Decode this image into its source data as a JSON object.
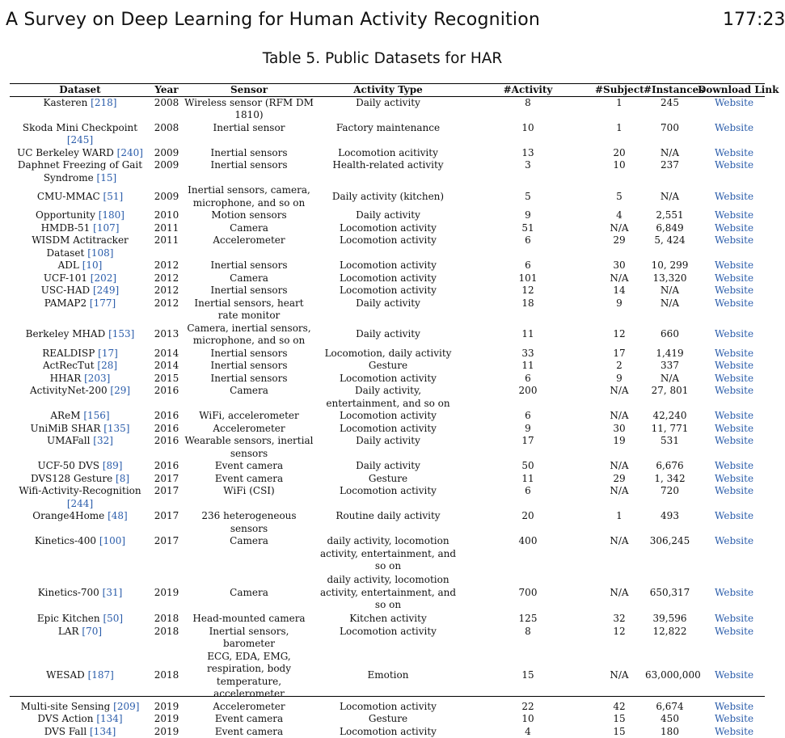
{
  "header": {
    "title": "A Survey on Deep Learning for Human Activity Recognition",
    "page": "177:23"
  },
  "caption": "Table 5.  Public Datasets for HAR",
  "columns": [
    "Dataset",
    "Year",
    "Sensor",
    "Activity Type",
    "#Activity",
    "#Subject",
    "#Instances",
    "Download Link"
  ],
  "rows": [
    {
      "name": "Kasteren",
      "ref": "[218]",
      "year": "2008",
      "sensor": "Wireless sensor (RFM DM 1810)",
      "activity": "Daily activity",
      "n_act": "8",
      "n_subj": "1",
      "n_inst": "245",
      "link": "Website"
    },
    {
      "name": "Skoda Mini Checkpoint",
      "ref": "[245]",
      "year": "2008",
      "sensor": "Inertial sensor",
      "activity": "Factory maintenance",
      "n_act": "10",
      "n_subj": "1",
      "n_inst": "700",
      "link": "Website"
    },
    {
      "name": "UC Berkeley WARD",
      "ref": "[240]",
      "year": "2009",
      "sensor": "Inertial sensors",
      "activity": "Locomotion acitivity",
      "n_act": "13",
      "n_subj": "20",
      "n_inst": "N/A",
      "link": "Website"
    },
    {
      "name": "Daphnet Freezing of Gait Syndrome",
      "ref": "[15]",
      "year": "2009",
      "sensor": "Inertial sensors",
      "activity": "Health-related activity",
      "n_act": "3",
      "n_subj": "10",
      "n_inst": "237",
      "link": "Website"
    },
    {
      "name": "CMU-MMAC",
      "ref": "[51]",
      "year": "2009",
      "sensor": "Inertial sensors, camera, microphone, and so on",
      "activity": "Daily activity (kitchen)",
      "n_act": "5",
      "n_subj": "5",
      "n_inst": "N/A",
      "link": "Website",
      "mid": true
    },
    {
      "name": "Opportunity",
      "ref": "[180]",
      "year": "2010",
      "sensor": "Motion sensors",
      "activity": "Daily activity",
      "n_act": "9",
      "n_subj": "4",
      "n_inst": "2,551",
      "link": "Website"
    },
    {
      "name": "HMDB-51",
      "ref": "[107]",
      "year": "2011",
      "sensor": "Camera",
      "activity": "Locomotion activity",
      "n_act": "51",
      "n_subj": "N/A",
      "n_inst": "6,849",
      "link": "Website"
    },
    {
      "name": "WISDM Actitracker Dataset",
      "ref": "[108]",
      "year": "2011",
      "sensor": "Accelerometer",
      "activity": "Locomotion activity",
      "n_act": "6",
      "n_subj": "29",
      "n_inst": "5, 424",
      "link": "Website"
    },
    {
      "name": "ADL",
      "ref": "[10]",
      "year": "2012",
      "sensor": "Inertial sensors",
      "activity": "Locomotion activity",
      "n_act": "6",
      "n_subj": "30",
      "n_inst": "10, 299",
      "link": "Website"
    },
    {
      "name": "UCF-101",
      "ref": "[202]",
      "year": "2012",
      "sensor": "Camera",
      "activity": "Locomotion activity",
      "n_act": "101",
      "n_subj": "N/A",
      "n_inst": "13,320",
      "link": "Website"
    },
    {
      "name": "USC-HAD",
      "ref": "[249]",
      "year": "2012",
      "sensor": "Inertial sensors",
      "activity": "Locomotion activity",
      "n_act": "12",
      "n_subj": "14",
      "n_inst": "N/A",
      "link": "Website"
    },
    {
      "name": "PAMAP2",
      "ref": "[177]",
      "year": "2012",
      "sensor": "Inertial sensors, heart rate monitor",
      "activity": "Daily activity",
      "n_act": "18",
      "n_subj": "9",
      "n_inst": "N/A",
      "link": "Website"
    },
    {
      "name": "Berkeley MHAD",
      "ref": "[153]",
      "year": "2013",
      "sensor": "Camera, inertial sensors, microphone, and so on",
      "activity": "Daily activity",
      "n_act": "11",
      "n_subj": "12",
      "n_inst": "660",
      "link": "Website",
      "mid": true
    },
    {
      "name": "REALDISP",
      "ref": "[17]",
      "year": "2014",
      "sensor": "Inertial sensors",
      "activity": "Locomotion, daily activity",
      "n_act": "33",
      "n_subj": "17",
      "n_inst": "1,419",
      "link": "Website"
    },
    {
      "name": "ActRecTut",
      "ref": "[28]",
      "year": "2014",
      "sensor": "Inertial sensors",
      "activity": "Gesture",
      "n_act": "11",
      "n_subj": "2",
      "n_inst": "337",
      "link": "Website"
    },
    {
      "name": "HHAR",
      "ref": "[203]",
      "year": "2015",
      "sensor": "Inertial sensors",
      "activity": "Locomotion activity",
      "n_act": "6",
      "n_subj": "9",
      "n_inst": "N/A",
      "link": "Website"
    },
    {
      "name": "ActivityNet-200",
      "ref": "[29]",
      "year": "2016",
      "sensor": "Camera",
      "activity": "Daily activity, entertainment, and so on",
      "n_act": "200",
      "n_subj": "N/A",
      "n_inst": "27, 801",
      "link": "Website"
    },
    {
      "name": "AReM",
      "ref": "[156]",
      "year": "2016",
      "sensor": "WiFi, accelerometer",
      "activity": "Locomotion activity",
      "n_act": "6",
      "n_subj": "N/A",
      "n_inst": "42,240",
      "link": "Website"
    },
    {
      "name": "UniMiB SHAR",
      "ref": "[135]",
      "year": "2016",
      "sensor": "Accelerometer",
      "activity": "Locomotion activity",
      "n_act": "9",
      "n_subj": "30",
      "n_inst": "11, 771",
      "link": "Website"
    },
    {
      "name": "UMAFall",
      "ref": "[32]",
      "year": "2016",
      "sensor": "Wearable sensors, inertial sensors",
      "activity": "Daily activity",
      "n_act": "17",
      "n_subj": "19",
      "n_inst": "531",
      "link": "Website"
    },
    {
      "name": "UCF-50 DVS",
      "ref": "[89]",
      "year": "2016",
      "sensor": "Event camera",
      "activity": "Daily activity",
      "n_act": "50",
      "n_subj": "N/A",
      "n_inst": "6,676",
      "link": "Website"
    },
    {
      "name": "DVS128 Gesture",
      "ref": "[8]",
      "year": "2017",
      "sensor": "Event camera",
      "activity": "Gesture",
      "n_act": "11",
      "n_subj": "29",
      "n_inst": "1, 342",
      "link": "Website"
    },
    {
      "name": "Wifi-Activity-Recognition",
      "ref": "[244]",
      "year": "2017",
      "sensor": "WiFi (CSI)",
      "activity": "Locomotion activity",
      "n_act": "6",
      "n_subj": "N/A",
      "n_inst": "720",
      "link": "Website"
    },
    {
      "name": "Orange4Home",
      "ref": "[48]",
      "year": "2017",
      "sensor": "236 heterogeneous sensors",
      "activity": "Routine daily activity",
      "n_act": "20",
      "n_subj": "1",
      "n_inst": "493",
      "link": "Website"
    },
    {
      "name": "Kinetics-400",
      "ref": "[100]",
      "year": "2017",
      "sensor": "Camera",
      "activity": "daily activity, locomotion activity, entertainment, and so on",
      "n_act": "400",
      "n_subj": "N/A",
      "n_inst": "306,245",
      "link": "Website"
    },
    {
      "name": "Kinetics-700",
      "ref": "[31]",
      "year": "2019",
      "sensor": "Camera",
      "activity": "daily activity, locomotion activity, entertainment, and so on",
      "n_act": "700",
      "n_subj": "N/A",
      "n_inst": "650,317",
      "link": "Website",
      "mid": true,
      "pad": true
    },
    {
      "name": "Epic Kitchen",
      "ref": "[50]",
      "year": "2018",
      "sensor": "Head-mounted camera",
      "activity": "Kitchen activity",
      "n_act": "125",
      "n_subj": "32",
      "n_inst": "39,596",
      "link": "Website"
    },
    {
      "name": "LAR",
      "ref": "[70]",
      "year": "2018",
      "sensor": "Inertial sensors, barometer",
      "activity": "Locomotion activity",
      "n_act": "8",
      "n_subj": "12",
      "n_inst": "12,822",
      "link": "Website"
    },
    {
      "name": "WESAD",
      "ref": "[187]",
      "year": "2018",
      "sensor": "ECG, EDA, EMG, respiration, body temperature, accelerometer",
      "activity": "Emotion",
      "n_act": "15",
      "n_subj": "N/A",
      "n_inst": "63,000,000",
      "link": "Website",
      "mid": true
    },
    {
      "name": "Multi-site Sensing",
      "ref": "[209]",
      "year": "2019",
      "sensor": "Accelerometer",
      "activity": "Locomotion activity",
      "n_act": "22",
      "n_subj": "42",
      "n_inst": "6,674",
      "link": "Website"
    },
    {
      "name": "DVS Action",
      "ref": "[134]",
      "year": "2019",
      "sensor": "Event camera",
      "activity": "Gesture",
      "n_act": "10",
      "n_subj": "15",
      "n_inst": "450",
      "link": "Website"
    },
    {
      "name": "DVS Fall",
      "ref": "[134]",
      "year": "2019",
      "sensor": "Event camera",
      "activity": "Locomotion activity",
      "n_act": "4",
      "n_subj": "15",
      "n_inst": "180",
      "link": "Website"
    }
  ]
}
